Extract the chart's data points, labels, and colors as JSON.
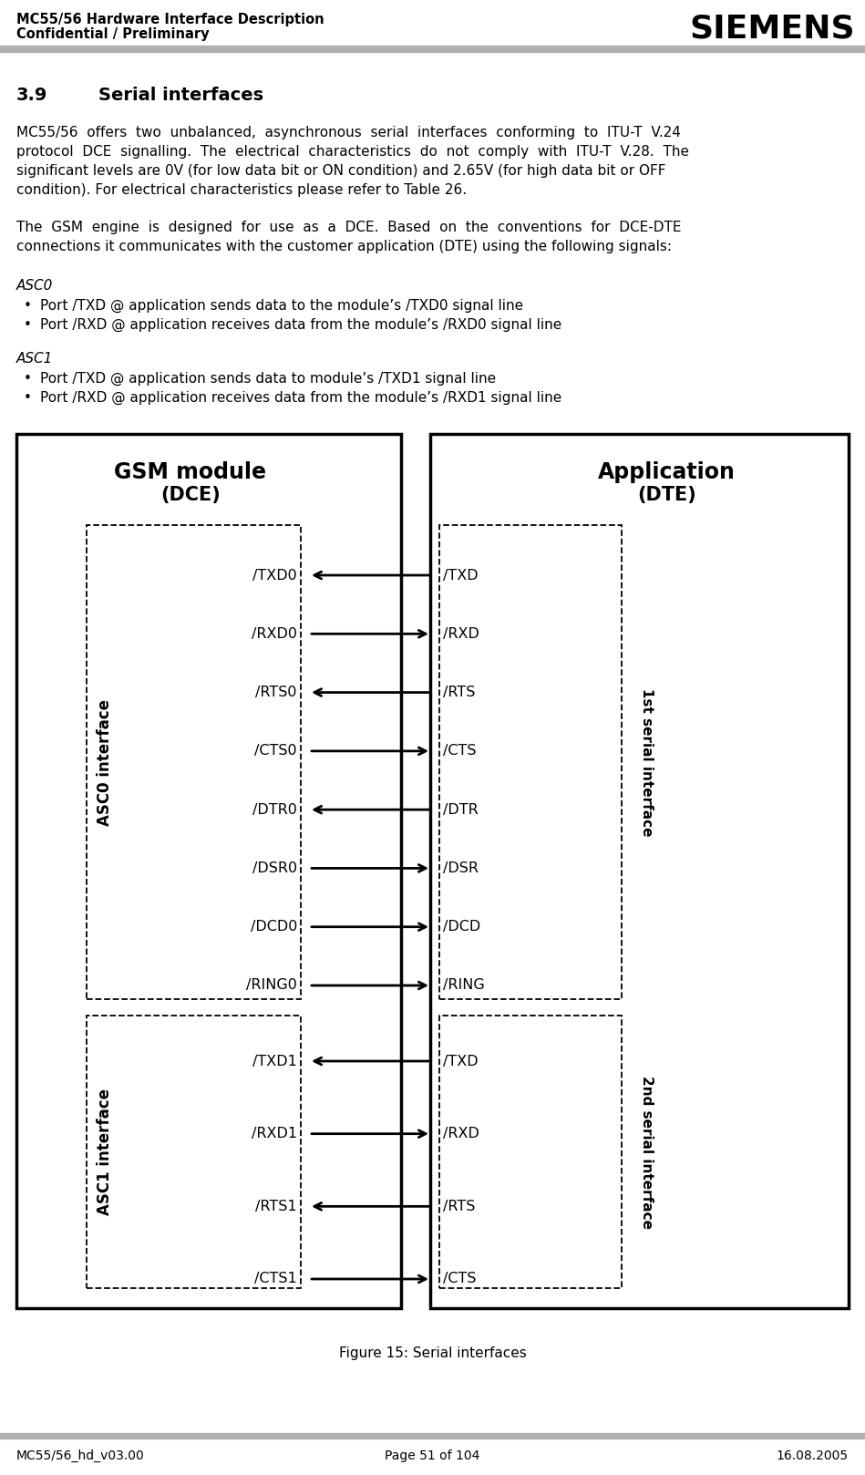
{
  "header_left_line1": "MC55/56 Hardware Interface Description",
  "header_left_line2": "Confidential / Preliminary",
  "header_right": "SIEMENS",
  "footer_left": "MC55/56_hd_v03.00",
  "footer_center": "Page 51 of 104",
  "footer_right": "16.08.2005",
  "section_number": "3.9",
  "section_title": "Serial interfaces",
  "para1_lines": [
    "MC55/56  offers  two  unbalanced,  asynchronous  serial  interfaces  conforming  to  ITU-T  V.24",
    "protocol  DCE  signalling.  The  electrical  characteristics  do  not  comply  with  ITU-T  V.28.  The",
    "significant levels are 0V (for low data bit or ON condition) and 2.65V (for high data bit or OFF",
    "condition). For electrical characteristics please refer to Table 26."
  ],
  "para2_lines": [
    "The  GSM  engine  is  designed  for  use  as  a  DCE.  Based  on  the  conventions  for  DCE-DTE",
    "connections it communicates with the customer application (DTE) using the following signals:"
  ],
  "asc0_label": "ASC0",
  "asc0_bullet1": "Port /TXD @ application sends data to the module’s /TXD0 signal line",
  "asc0_bullet2": "Port /RXD @ application receives data from the module’s /RXD0 signal line",
  "asc1_label": "ASC1",
  "asc1_bullet1": "Port /TXD @ application sends data to module’s /TXD1 signal line",
  "asc1_bullet2": "Port /RXD @ application receives data from the module’s /RXD1 signal line",
  "figure_caption": "Figure 15: Serial interfaces",
  "gsm_title": "GSM module",
  "gsm_subtitle": "(DCE)",
  "app_title": "Application",
  "app_subtitle": "(DTE)",
  "asc0_interface_label": "ASC0 interface",
  "asc1_interface_label": "ASC1 interface",
  "first_serial_label": "1st serial interface",
  "second_serial_label": "2nd serial interface",
  "asc0_signals_left": [
    "/TXD0",
    "/RXD0",
    "/RTS0",
    "/CTS0",
    "/DTR0",
    "/DSR0",
    "/DCD0",
    "/RING0"
  ],
  "asc0_signals_right": [
    "/TXD",
    "/RXD",
    "/RTS",
    "/CTS",
    "/DTR",
    "/DSR",
    "/DCD",
    "/RING"
  ],
  "asc0_arrow_dirs": [
    "left",
    "right",
    "left",
    "right",
    "left",
    "right",
    "right",
    "right"
  ],
  "asc1_signals_left": [
    "/TXD1",
    "/RXD1",
    "/RTS1",
    "/CTS1"
  ],
  "asc1_signals_right": [
    "/TXD",
    "/RXD",
    "/RTS",
    "/CTS"
  ],
  "asc1_arrow_dirs": [
    "left",
    "right",
    "left",
    "right"
  ],
  "bg_color": "#ffffff",
  "text_color": "#000000",
  "header_bar_color": "#b0b0b0"
}
